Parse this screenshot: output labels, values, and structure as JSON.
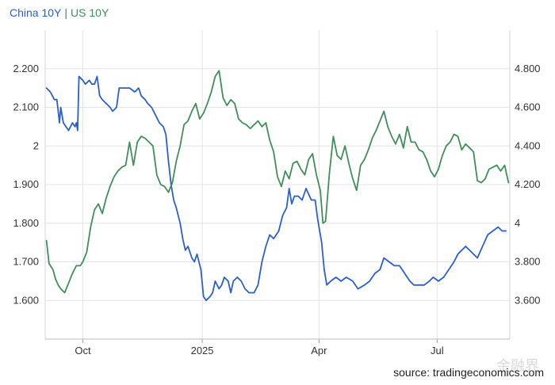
{
  "legend": {
    "china": "China 10Y",
    "separator": "|",
    "us": "US 10Y"
  },
  "source": "source: tradingeconomics.com",
  "watermark": "金融界",
  "chart_data": {
    "type": "line",
    "title": "",
    "x_ticks": [
      "Oct",
      "2025",
      "Apr",
      "Jul"
    ],
    "left_axis": {
      "ticks": [
        "1.600",
        "1.700",
        "1.800",
        "1.900",
        "2",
        "2.100",
        "2.200"
      ],
      "ylim": [
        1.5,
        2.3
      ]
    },
    "right_axis": {
      "ticks": [
        "3.600",
        "3.800",
        "4",
        "4.200",
        "4.400",
        "4.600",
        "4.800"
      ],
      "ylim": [
        3.4,
        5.0
      ]
    },
    "grid": true,
    "legend_position": "top-left",
    "series": [
      {
        "name": "China 10Y",
        "axis": "left",
        "color": "#2b5fcf",
        "points": [
          [
            "2024-09-03",
            2.15
          ],
          [
            "2024-09-06",
            2.14
          ],
          [
            "2024-09-09",
            2.12
          ],
          [
            "2024-09-11",
            2.12
          ],
          [
            "2024-09-12",
            2.09
          ],
          [
            "2024-09-13",
            2.06
          ],
          [
            "2024-09-14",
            2.1
          ],
          [
            "2024-09-16",
            2.06
          ],
          [
            "2024-09-18",
            2.05
          ],
          [
            "2024-09-20",
            2.04
          ],
          [
            "2024-09-23",
            2.06
          ],
          [
            "2024-09-25",
            2.05
          ],
          [
            "2024-09-26",
            2.06
          ],
          [
            "2024-09-27",
            2.04
          ],
          [
            "2024-09-28",
            2.18
          ],
          [
            "2024-10-01",
            2.17
          ],
          [
            "2024-10-03",
            2.16
          ],
          [
            "2024-10-06",
            2.17
          ],
          [
            "2024-10-08",
            2.16
          ],
          [
            "2024-10-10",
            2.16
          ],
          [
            "2024-10-12",
            2.18
          ],
          [
            "2024-10-14",
            2.13
          ],
          [
            "2024-10-16",
            2.12
          ],
          [
            "2024-10-19",
            2.11
          ],
          [
            "2024-10-22",
            2.1
          ],
          [
            "2024-10-24",
            2.09
          ],
          [
            "2024-10-27",
            2.1
          ],
          [
            "2024-10-29",
            2.15
          ],
          [
            "2024-11-02",
            2.15
          ],
          [
            "2024-11-06",
            2.15
          ],
          [
            "2024-11-10",
            2.14
          ],
          [
            "2024-11-13",
            2.15
          ],
          [
            "2024-11-15",
            2.13
          ],
          [
            "2024-11-18",
            2.12
          ],
          [
            "2024-11-20",
            2.11
          ],
          [
            "2024-11-23",
            2.1
          ],
          [
            "2024-11-26",
            2.08
          ],
          [
            "2024-11-29",
            2.06
          ],
          [
            "2024-12-02",
            2.05
          ],
          [
            "2024-12-04",
            2.03
          ],
          [
            "2024-12-06",
            1.96
          ],
          [
            "2024-12-08",
            1.9
          ],
          [
            "2024-12-10",
            1.86
          ],
          [
            "2024-12-12",
            1.84
          ],
          [
            "2024-12-15",
            1.8
          ],
          [
            "2024-12-17",
            1.76
          ],
          [
            "2024-12-19",
            1.73
          ],
          [
            "2024-12-21",
            1.74
          ],
          [
            "2024-12-24",
            1.71
          ],
          [
            "2024-12-26",
            1.7
          ],
          [
            "2024-12-28",
            1.72
          ],
          [
            "2024-12-31",
            1.68
          ],
          [
            "2025-01-02",
            1.61
          ],
          [
            "2025-01-04",
            1.6
          ],
          [
            "2025-01-07",
            1.61
          ],
          [
            "2025-01-09",
            1.62
          ],
          [
            "2025-01-11",
            1.65
          ],
          [
            "2025-01-14",
            1.63
          ],
          [
            "2025-01-16",
            1.64
          ],
          [
            "2025-01-18",
            1.66
          ],
          [
            "2025-01-21",
            1.65
          ],
          [
            "2025-01-23",
            1.62
          ],
          [
            "2025-01-25",
            1.65
          ],
          [
            "2025-01-28",
            1.66
          ],
          [
            "2025-01-31",
            1.65
          ],
          [
            "2025-02-03",
            1.63
          ],
          [
            "2025-02-06",
            1.62
          ],
          [
            "2025-02-10",
            1.62
          ],
          [
            "2025-02-13",
            1.64
          ],
          [
            "2025-02-16",
            1.7
          ],
          [
            "2025-02-19",
            1.74
          ],
          [
            "2025-02-22",
            1.77
          ],
          [
            "2025-02-25",
            1.76
          ],
          [
            "2025-03-01",
            1.78
          ],
          [
            "2025-03-04",
            1.82
          ],
          [
            "2025-03-07",
            1.84
          ],
          [
            "2025-03-09",
            1.89
          ],
          [
            "2025-03-11",
            1.85
          ],
          [
            "2025-03-13",
            1.87
          ],
          [
            "2025-03-16",
            1.87
          ],
          [
            "2025-03-19",
            1.86
          ],
          [
            "2025-03-22",
            1.89
          ],
          [
            "2025-03-26",
            1.86
          ],
          [
            "2025-03-29",
            1.86
          ],
          [
            "2025-03-31",
            1.81
          ],
          [
            "2025-04-03",
            1.75
          ],
          [
            "2025-04-05",
            1.68
          ],
          [
            "2025-04-07",
            1.64
          ],
          [
            "2025-04-10",
            1.65
          ],
          [
            "2025-04-14",
            1.66
          ],
          [
            "2025-04-18",
            1.65
          ],
          [
            "2025-04-22",
            1.66
          ],
          [
            "2025-04-27",
            1.65
          ],
          [
            "2025-05-01",
            1.63
          ],
          [
            "2025-05-06",
            1.64
          ],
          [
            "2025-05-10",
            1.65
          ],
          [
            "2025-05-14",
            1.67
          ],
          [
            "2025-05-18",
            1.68
          ],
          [
            "2025-05-21",
            1.71
          ],
          [
            "2025-05-25",
            1.7
          ],
          [
            "2025-05-29",
            1.69
          ],
          [
            "2025-06-02",
            1.69
          ],
          [
            "2025-06-06",
            1.67
          ],
          [
            "2025-06-10",
            1.65
          ],
          [
            "2025-06-13",
            1.64
          ],
          [
            "2025-06-17",
            1.64
          ],
          [
            "2025-06-21",
            1.64
          ],
          [
            "2025-06-25",
            1.65
          ],
          [
            "2025-06-28",
            1.66
          ],
          [
            "2025-07-02",
            1.65
          ],
          [
            "2025-07-06",
            1.66
          ],
          [
            "2025-07-10",
            1.68
          ],
          [
            "2025-07-14",
            1.7
          ],
          [
            "2025-07-17",
            1.72
          ],
          [
            "2025-07-20",
            1.73
          ],
          [
            "2025-07-23",
            1.74
          ],
          [
            "2025-07-26",
            1.73
          ],
          [
            "2025-07-29",
            1.72
          ],
          [
            "2025-08-01",
            1.71
          ],
          [
            "2025-08-05",
            1.74
          ],
          [
            "2025-08-09",
            1.77
          ],
          [
            "2025-08-13",
            1.78
          ],
          [
            "2025-08-17",
            1.79
          ],
          [
            "2025-08-20",
            1.78
          ],
          [
            "2025-08-23",
            1.78
          ]
        ]
      },
      {
        "name": "US 10Y",
        "axis": "right",
        "color": "#3f8f58",
        "points": [
          [
            "2024-09-03",
            3.91
          ],
          [
            "2024-09-05",
            3.79
          ],
          [
            "2024-09-08",
            3.76
          ],
          [
            "2024-09-10",
            3.71
          ],
          [
            "2024-09-12",
            3.68
          ],
          [
            "2024-09-14",
            3.66
          ],
          [
            "2024-09-17",
            3.64
          ],
          [
            "2024-09-20",
            3.69
          ],
          [
            "2024-09-23",
            3.74
          ],
          [
            "2024-09-26",
            3.78
          ],
          [
            "2024-09-29",
            3.78
          ],
          [
            "2024-10-01",
            3.8
          ],
          [
            "2024-10-04",
            3.85
          ],
          [
            "2024-10-07",
            3.98
          ],
          [
            "2024-10-10",
            4.07
          ],
          [
            "2024-10-13",
            4.1
          ],
          [
            "2024-10-16",
            4.05
          ],
          [
            "2024-10-19",
            4.13
          ],
          [
            "2024-10-22",
            4.19
          ],
          [
            "2024-10-25",
            4.24
          ],
          [
            "2024-10-28",
            4.27
          ],
          [
            "2024-10-31",
            4.29
          ],
          [
            "2024-11-03",
            4.3
          ],
          [
            "2024-11-06",
            4.42
          ],
          [
            "2024-11-09",
            4.3
          ],
          [
            "2024-11-12",
            4.42
          ],
          [
            "2024-11-15",
            4.45
          ],
          [
            "2024-11-18",
            4.44
          ],
          [
            "2024-11-21",
            4.42
          ],
          [
            "2024-11-24",
            4.4
          ],
          [
            "2024-11-27",
            4.25
          ],
          [
            "2024-11-30",
            4.2
          ],
          [
            "2024-12-03",
            4.19
          ],
          [
            "2024-12-06",
            4.16
          ],
          [
            "2024-12-09",
            4.21
          ],
          [
            "2024-12-12",
            4.32
          ],
          [
            "2024-12-15",
            4.4
          ],
          [
            "2024-12-18",
            4.51
          ],
          [
            "2024-12-21",
            4.53
          ],
          [
            "2024-12-24",
            4.58
          ],
          [
            "2024-12-27",
            4.62
          ],
          [
            "2024-12-30",
            4.54
          ],
          [
            "2025-01-02",
            4.57
          ],
          [
            "2025-01-05",
            4.62
          ],
          [
            "2025-01-08",
            4.68
          ],
          [
            "2025-01-11",
            4.76
          ],
          [
            "2025-01-14",
            4.79
          ],
          [
            "2025-01-17",
            4.65
          ],
          [
            "2025-01-20",
            4.61
          ],
          [
            "2025-01-23",
            4.64
          ],
          [
            "2025-01-26",
            4.62
          ],
          [
            "2025-01-29",
            4.54
          ],
          [
            "2025-02-01",
            4.52
          ],
          [
            "2025-02-04",
            4.51
          ],
          [
            "2025-02-07",
            4.49
          ],
          [
            "2025-02-10",
            4.51
          ],
          [
            "2025-02-13",
            4.53
          ],
          [
            "2025-02-16",
            4.5
          ],
          [
            "2025-02-19",
            4.52
          ],
          [
            "2025-02-22",
            4.43
          ],
          [
            "2025-02-25",
            4.37
          ],
          [
            "2025-02-28",
            4.24
          ],
          [
            "2025-03-03",
            4.19
          ],
          [
            "2025-03-06",
            4.27
          ],
          [
            "2025-03-09",
            4.23
          ],
          [
            "2025-03-12",
            4.31
          ],
          [
            "2025-03-15",
            4.32
          ],
          [
            "2025-03-18",
            4.28
          ],
          [
            "2025-03-21",
            4.25
          ],
          [
            "2025-03-24",
            4.33
          ],
          [
            "2025-03-27",
            4.36
          ],
          [
            "2025-03-30",
            4.25
          ],
          [
            "2025-04-02",
            4.17
          ],
          [
            "2025-04-04",
            4.0
          ],
          [
            "2025-04-06",
            4.01
          ],
          [
            "2025-04-09",
            4.26
          ],
          [
            "2025-04-12",
            4.45
          ],
          [
            "2025-04-15",
            4.35
          ],
          [
            "2025-04-18",
            4.33
          ],
          [
            "2025-04-21",
            4.4
          ],
          [
            "2025-04-24",
            4.31
          ],
          [
            "2025-04-27",
            4.23
          ],
          [
            "2025-04-30",
            4.17
          ],
          [
            "2025-05-03",
            4.3
          ],
          [
            "2025-05-06",
            4.33
          ],
          [
            "2025-05-09",
            4.38
          ],
          [
            "2025-05-12",
            4.44
          ],
          [
            "2025-05-15",
            4.48
          ],
          [
            "2025-05-18",
            4.53
          ],
          [
            "2025-05-21",
            4.58
          ],
          [
            "2025-05-24",
            4.5
          ],
          [
            "2025-05-27",
            4.45
          ],
          [
            "2025-05-30",
            4.41
          ],
          [
            "2025-06-02",
            4.46
          ],
          [
            "2025-06-05",
            4.39
          ],
          [
            "2025-06-08",
            4.5
          ],
          [
            "2025-06-11",
            4.42
          ],
          [
            "2025-06-14",
            4.42
          ],
          [
            "2025-06-17",
            4.38
          ],
          [
            "2025-06-20",
            4.37
          ],
          [
            "2025-06-23",
            4.33
          ],
          [
            "2025-06-26",
            4.27
          ],
          [
            "2025-06-29",
            4.24
          ],
          [
            "2025-07-02",
            4.28
          ],
          [
            "2025-07-05",
            4.35
          ],
          [
            "2025-07-08",
            4.4
          ],
          [
            "2025-07-11",
            4.42
          ],
          [
            "2025-07-14",
            4.46
          ],
          [
            "2025-07-17",
            4.45
          ],
          [
            "2025-07-20",
            4.38
          ],
          [
            "2025-07-23",
            4.41
          ],
          [
            "2025-07-26",
            4.39
          ],
          [
            "2025-07-29",
            4.37
          ],
          [
            "2025-08-01",
            4.22
          ],
          [
            "2025-08-04",
            4.21
          ],
          [
            "2025-08-07",
            4.23
          ],
          [
            "2025-08-10",
            4.28
          ],
          [
            "2025-08-13",
            4.29
          ],
          [
            "2025-08-16",
            4.3
          ],
          [
            "2025-08-19",
            4.27
          ],
          [
            "2025-08-22",
            4.3
          ],
          [
            "2025-08-24",
            4.24
          ],
          [
            "2025-08-25",
            4.21
          ]
        ]
      }
    ]
  }
}
